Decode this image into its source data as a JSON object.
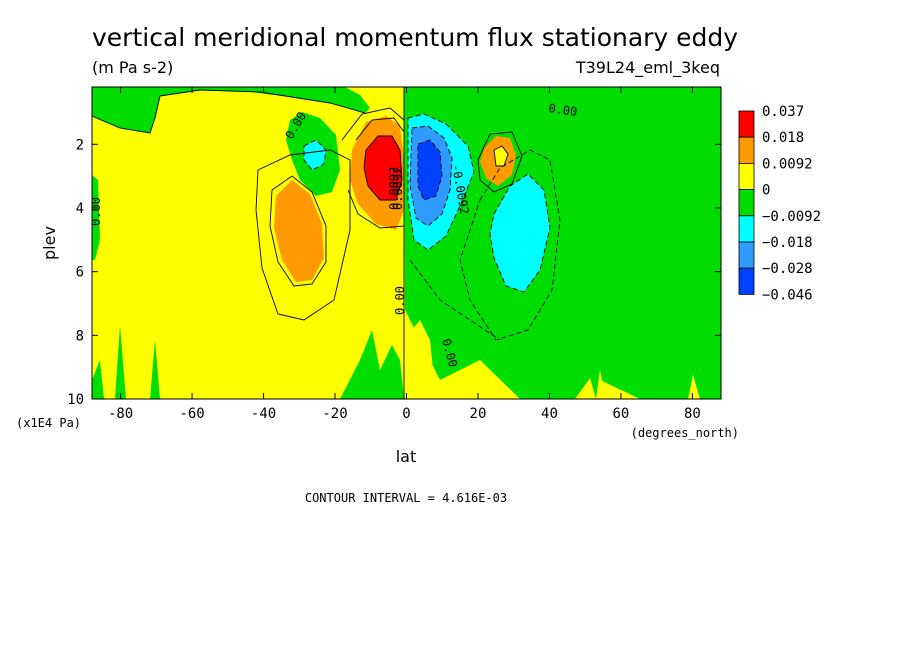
{
  "chart_data": {
    "type": "heatmap",
    "title": "vertical meridional momentum flux stationary eddy",
    "units": "(m Pa s-2)",
    "run_id": "T39L24_eml_3keq",
    "xlabel": "lat",
    "xunits": "(degrees_north)",
    "ylabel": "plev",
    "yunits": "(x1E4 Pa)",
    "xlim": [
      -88,
      88
    ],
    "ylim": [
      10,
      0.2
    ],
    "xticks": [
      "-80",
      "-60",
      "-40",
      "-20",
      "0",
      "20",
      "40",
      "60",
      "80"
    ],
    "yticks": [
      "2",
      "4",
      "6",
      "8",
      "10"
    ],
    "footer": "CONTOUR INTERVAL = 4.616E-03",
    "legend": {
      "levels": [
        "0.037",
        "0.018",
        "0.0092",
        "0",
        "−0.0092",
        "−0.018",
        "−0.028",
        "−0.046"
      ],
      "colors": [
        "#ff0000",
        "#ff9a00",
        "#ffff00",
        "#00dd00",
        "#00ffff",
        "#2f9bff",
        "#0040ff"
      ]
    },
    "contour_labels": [
      "0.00",
      "0.00",
      "0.00",
      "0.0092",
      "0.0092",
      "-0.0092",
      "0.00",
      "0.00"
    ],
    "features": [
      {
        "name": "max-nh-subtropics",
        "lat": -6,
        "plev": 2.8,
        "value": 0.037
      },
      {
        "name": "min-eq-north",
        "lat": 6,
        "plev": 2.9,
        "value": -0.046
      },
      {
        "name": "pos-sh-midlat",
        "lat": -33,
        "plev": 4.5,
        "value": 0.0092
      },
      {
        "name": "neg-nh-midlat",
        "lat": 31,
        "plev": 5.0,
        "value": -0.018
      },
      {
        "name": "pos-nh-upper",
        "lat": 26,
        "plev": 2.4,
        "value": 0.018
      },
      {
        "name": "neg-sh-upper",
        "lat": -25,
        "plev": 2.4,
        "value": -0.018
      }
    ]
  }
}
